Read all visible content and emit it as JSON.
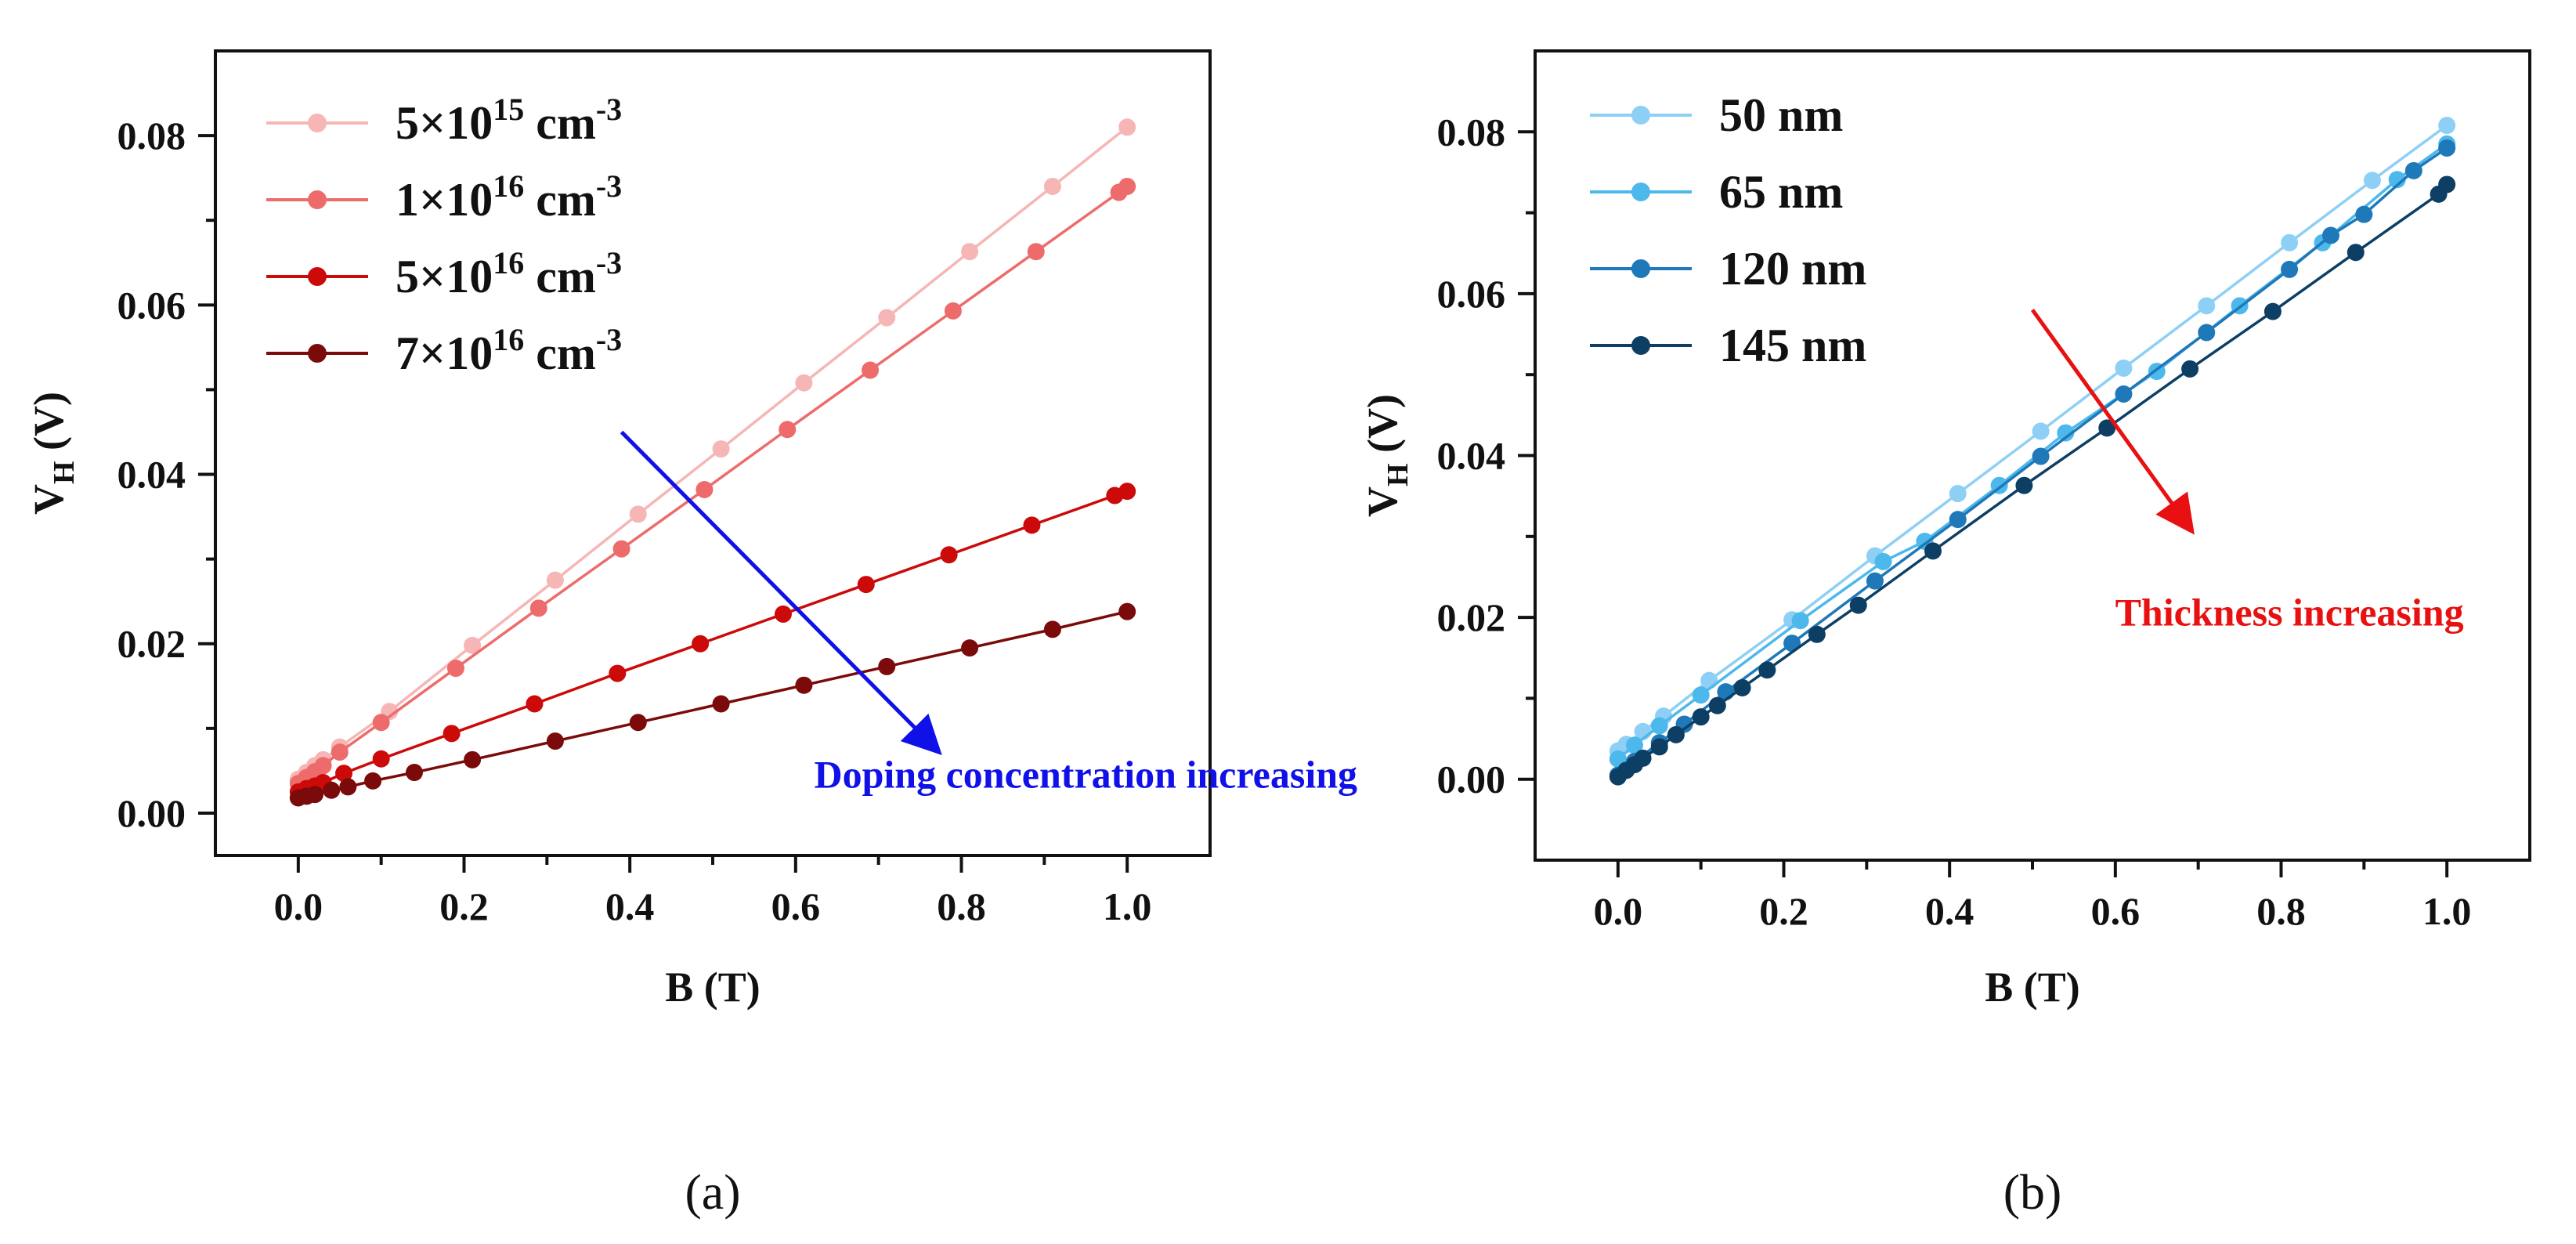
{
  "chart_data": [
    {
      "type": "line",
      "panel_label": "(a)",
      "xlabel": "B (T)",
      "ylabel": {
        "main": "V",
        "sub": "H",
        "rest": " (V)"
      },
      "xlim": [
        -0.1,
        1.1
      ],
      "ylim": [
        -0.005,
        0.09
      ],
      "xticks": [
        0.0,
        0.2,
        0.4,
        0.6,
        0.8,
        1.0
      ],
      "xtick_labels": [
        "0.0",
        "0.2",
        "0.4",
        "0.6",
        "0.8",
        "1.0"
      ],
      "yticks": [
        0.0,
        0.02,
        0.04,
        0.06,
        0.08
      ],
      "ytick_labels": [
        "0.00",
        "0.02",
        "0.04",
        "0.06",
        "0.08"
      ],
      "legend_position": "top-left",
      "series": [
        {
          "name": "5×10^15 cm^-3",
          "label": {
            "mant": "5×10",
            "exp": "15",
            "unit": " cm",
            "uexp": "-3"
          },
          "color": "#F6B6B6",
          "x": [
            0,
            0.01,
            0.02,
            0.03,
            0.05,
            0.11,
            0.21,
            0.31,
            0.41,
            0.51,
            0.61,
            0.71,
            0.81,
            0.91,
            1.0
          ],
          "y": [
            0.004,
            0.0048,
            0.0056,
            0.0063,
            0.0078,
            0.012,
            0.0198,
            0.0275,
            0.0353,
            0.043,
            0.0508,
            0.0585,
            0.0663,
            0.074,
            0.081
          ]
        },
        {
          "name": "1×10^16 cm^-3",
          "label": {
            "mant": "1×10",
            "exp": "16",
            "unit": " cm",
            "uexp": "-3"
          },
          "color": "#EE6B6B",
          "x": [
            0,
            0.01,
            0.02,
            0.03,
            0.05,
            0.1,
            0.19,
            0.29,
            0.39,
            0.49,
            0.59,
            0.69,
            0.79,
            0.89,
            0.99,
            1.0
          ],
          "y": [
            0.0035,
            0.0042,
            0.0049,
            0.0056,
            0.0072,
            0.0107,
            0.0171,
            0.0242,
            0.0312,
            0.0382,
            0.0453,
            0.0523,
            0.0593,
            0.0663,
            0.0733,
            0.074
          ]
        },
        {
          "name": "5×10^16 cm^-3",
          "label": {
            "mant": "5×10",
            "exp": "16",
            "unit": " cm",
            "uexp": "-3"
          },
          "color": "#CC0A0A",
          "x": [
            0,
            0.01,
            0.02,
            0.03,
            0.055,
            0.1,
            0.185,
            0.285,
            0.385,
            0.485,
            0.585,
            0.685,
            0.785,
            0.885,
            0.985,
            1.0
          ],
          "y": [
            0.0025,
            0.0029,
            0.0032,
            0.0036,
            0.0047,
            0.0064,
            0.0094,
            0.0129,
            0.0165,
            0.02,
            0.0235,
            0.027,
            0.0305,
            0.034,
            0.0375,
            0.038
          ]
        },
        {
          "name": "7×10^16 cm^-3",
          "label": {
            "mant": "7×10",
            "exp": "16",
            "unit": " cm",
            "uexp": "-3"
          },
          "color": "#7B0A0A",
          "x": [
            0,
            0.01,
            0.02,
            0.04,
            0.06,
            0.09,
            0.14,
            0.21,
            0.31,
            0.41,
            0.51,
            0.61,
            0.71,
            0.81,
            0.91,
            1.0
          ],
          "y": [
            0.0018,
            0.002,
            0.0022,
            0.0027,
            0.0031,
            0.0038,
            0.0048,
            0.0063,
            0.0085,
            0.0107,
            0.0129,
            0.0151,
            0.0173,
            0.0195,
            0.0217,
            0.0238
          ]
        }
      ],
      "annotation": {
        "text": "Doping concentration increasing",
        "color": "#1010E8",
        "arrow_from": [
          0.39,
          0.045
        ],
        "arrow_to": [
          0.77,
          0.0075
        ],
        "text_at": [
          0.95,
          0.003
        ]
      }
    },
    {
      "type": "line",
      "panel_label": "(b)",
      "xlabel": "B (T)",
      "ylabel": {
        "main": "V",
        "sub": "H",
        "rest": " (V)"
      },
      "xlim": [
        -0.1,
        1.1
      ],
      "ylim": [
        -0.01,
        0.09
      ],
      "xticks": [
        0.0,
        0.2,
        0.4,
        0.6,
        0.8,
        1.0
      ],
      "xtick_labels": [
        "0.0",
        "0.2",
        "0.4",
        "0.6",
        "0.8",
        "1.0"
      ],
      "yticks": [
        0.0,
        0.02,
        0.04,
        0.06,
        0.08
      ],
      "ytick_labels": [
        "0.00",
        "0.02",
        "0.04",
        "0.06",
        "0.08"
      ],
      "legend_position": "top-left",
      "series": [
        {
          "name": "50 nm",
          "label": {
            "mant": "50 nm"
          },
          "color": "#8ED0F5",
          "x": [
            0,
            0.01,
            0.03,
            0.055,
            0.11,
            0.21,
            0.31,
            0.41,
            0.51,
            0.61,
            0.71,
            0.81,
            0.91,
            1.0
          ],
          "y": [
            0.0035,
            0.0043,
            0.0059,
            0.0078,
            0.0122,
            0.0197,
            0.0276,
            0.0353,
            0.043,
            0.0508,
            0.0585,
            0.0663,
            0.074,
            0.0808
          ]
        },
        {
          "name": "65 nm",
          "label": {
            "mant": "65 nm"
          },
          "color": "#4DB8EC",
          "x": [
            0,
            0.02,
            0.05,
            0.1,
            0.22,
            0.32,
            0.37,
            0.46,
            0.54,
            0.65,
            0.75,
            0.85,
            0.94,
            1.0
          ],
          "y": [
            0.0025,
            0.0042,
            0.0066,
            0.0104,
            0.0196,
            0.0269,
            0.0294,
            0.0363,
            0.0428,
            0.0504,
            0.0585,
            0.0663,
            0.0741,
            0.0785
          ]
        },
        {
          "name": "120 nm",
          "label": {
            "mant": "120 nm"
          },
          "color": "#1F78B8",
          "x": [
            0,
            0.02,
            0.05,
            0.08,
            0.13,
            0.21,
            0.31,
            0.41,
            0.51,
            0.61,
            0.71,
            0.81,
            0.86,
            0.9,
            0.96,
            1.0
          ],
          "y": [
            0.0005,
            0.0022,
            0.0045,
            0.0068,
            0.0108,
            0.0168,
            0.0245,
            0.0321,
            0.0399,
            0.0476,
            0.0552,
            0.063,
            0.0672,
            0.0698,
            0.0752,
            0.078
          ]
        },
        {
          "name": "145 nm",
          "label": {
            "mant": "145 nm"
          },
          "color": "#0D3F64",
          "x": [
            0,
            0.01,
            0.02,
            0.03,
            0.05,
            0.07,
            0.1,
            0.12,
            0.15,
            0.18,
            0.24,
            0.29,
            0.38,
            0.49,
            0.59,
            0.69,
            0.79,
            0.89,
            0.99,
            1.0
          ],
          "y": [
            0.0003,
            0.0011,
            0.0018,
            0.0026,
            0.004,
            0.0055,
            0.0077,
            0.0091,
            0.0113,
            0.0135,
            0.0179,
            0.0215,
            0.0282,
            0.0363,
            0.0434,
            0.0507,
            0.0578,
            0.0651,
            0.0723,
            0.0735
          ]
        }
      ],
      "annotation": {
        "text": "Thickness increasing",
        "color": "#E81010",
        "arrow_from": [
          0.5,
          0.058
        ],
        "arrow_to": [
          0.69,
          0.031
        ],
        "text_at": [
          0.81,
          0.019
        ]
      }
    }
  ]
}
